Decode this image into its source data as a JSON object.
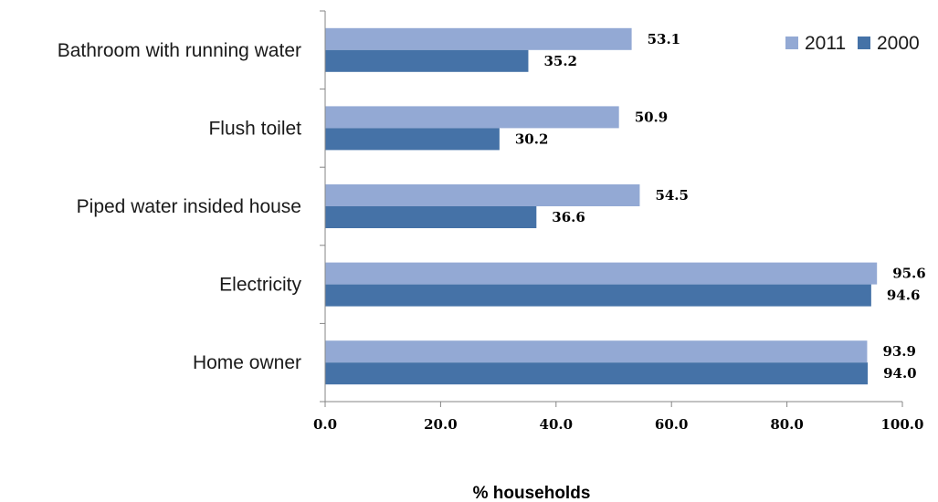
{
  "chart_data": {
    "type": "bar",
    "orientation": "horizontal",
    "categories": [
      "Bathroom with running water",
      "Flush toilet",
      "Piped water insided house",
      "Electricity",
      "Home owner"
    ],
    "series": [
      {
        "name": "2011",
        "values": [
          53.1,
          50.9,
          54.5,
          95.6,
          93.9
        ],
        "color": "#93a9d4"
      },
      {
        "name": "2000",
        "values": [
          35.2,
          30.2,
          36.6,
          94.6,
          94.0
        ],
        "color": "#4572a7"
      }
    ],
    "title": "",
    "xlabel": "% households",
    "ylabel": "",
    "xlim": [
      0,
      100
    ],
    "x_ticks": [
      "0.0",
      "20.0",
      "40.0",
      "60.0",
      "80.0",
      "100.0"
    ],
    "grid": false,
    "legend": "top-right"
  }
}
